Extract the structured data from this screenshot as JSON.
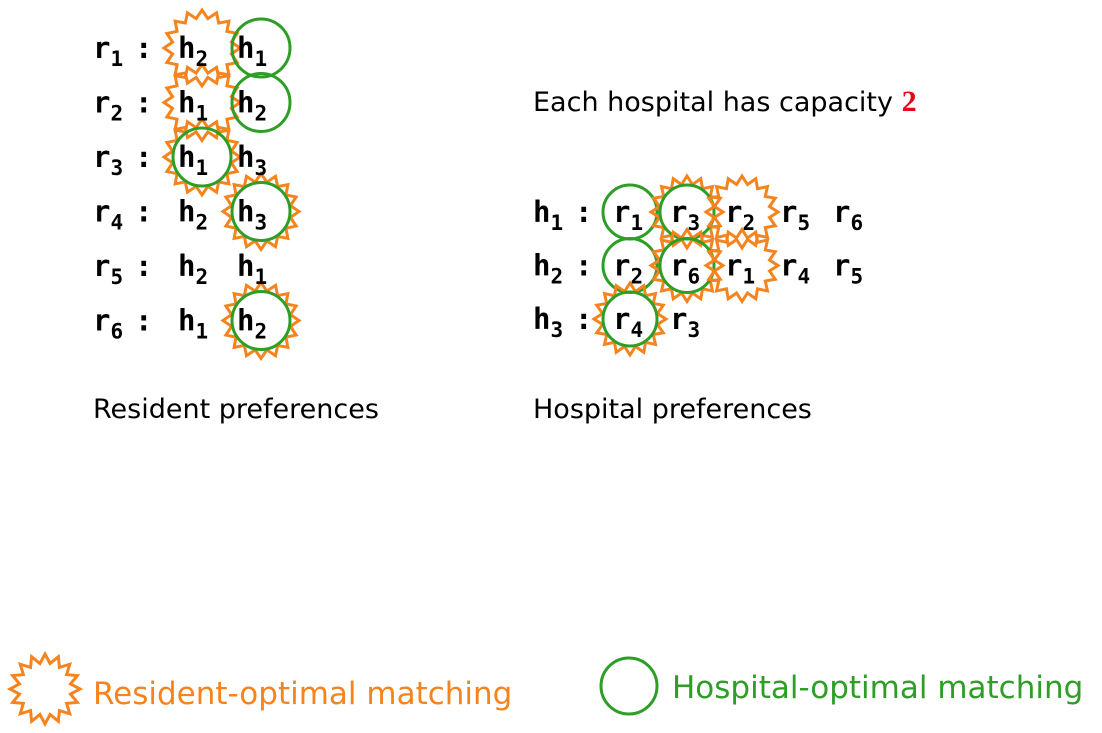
{
  "resident_rows": [
    {
      "name": "r",
      "sub": "1",
      "prefs": [
        {
          "t": "h",
          "s": "2",
          "star": true,
          "circle": false
        },
        {
          "t": "h",
          "s": "1",
          "star": false,
          "circle": true
        }
      ]
    },
    {
      "name": "r",
      "sub": "2",
      "prefs": [
        {
          "t": "h",
          "s": "1",
          "star": true,
          "circle": false
        },
        {
          "t": "h",
          "s": "2",
          "star": false,
          "circle": true
        }
      ]
    },
    {
      "name": "r",
      "sub": "3",
      "prefs": [
        {
          "t": "h",
          "s": "1",
          "star": true,
          "circle": true
        },
        {
          "t": "h",
          "s": "3",
          "star": false,
          "circle": false
        }
      ]
    },
    {
      "name": "r",
      "sub": "4",
      "prefs": [
        {
          "t": "h",
          "s": "2",
          "star": false,
          "circle": false
        },
        {
          "t": "h",
          "s": "3",
          "star": true,
          "circle": true
        }
      ]
    },
    {
      "name": "r",
      "sub": "5",
      "prefs": [
        {
          "t": "h",
          "s": "2",
          "star": false,
          "circle": false
        },
        {
          "t": "h",
          "s": "1",
          "star": false,
          "circle": false
        }
      ]
    },
    {
      "name": "r",
      "sub": "6",
      "prefs": [
        {
          "t": "h",
          "s": "1",
          "star": false,
          "circle": false
        },
        {
          "t": "h",
          "s": "2",
          "star": true,
          "circle": true
        }
      ]
    }
  ],
  "hospital_rows": [
    {
      "name": "h",
      "sub": "1",
      "prefs": [
        {
          "t": "r",
          "s": "1",
          "star": false,
          "circle": true
        },
        {
          "t": "r",
          "s": "3",
          "star": true,
          "circle": true
        },
        {
          "t": "r",
          "s": "2",
          "star": true,
          "circle": false
        },
        {
          "t": "r",
          "s": "5",
          "star": false,
          "circle": false
        },
        {
          "t": "r",
          "s": "6",
          "star": false,
          "circle": false
        }
      ]
    },
    {
      "name": "h",
      "sub": "2",
      "prefs": [
        {
          "t": "r",
          "s": "2",
          "star": false,
          "circle": true
        },
        {
          "t": "r",
          "s": "6",
          "star": true,
          "circle": true
        },
        {
          "t": "r",
          "s": "1",
          "star": true,
          "circle": false
        },
        {
          "t": "r",
          "s": "4",
          "star": false,
          "circle": false
        },
        {
          "t": "r",
          "s": "5",
          "star": false,
          "circle": false
        }
      ]
    },
    {
      "name": "h",
      "sub": "3",
      "prefs": [
        {
          "t": "r",
          "s": "4",
          "star": true,
          "circle": true
        },
        {
          "t": "r",
          "s": "3",
          "star": false,
          "circle": false
        }
      ]
    }
  ],
  "separator": ":",
  "capacity_text": "Each hospital has capacity ",
  "capacity_value": "2",
  "resident_caption": "Resident preferences",
  "hospital_caption": "Hospital preferences",
  "legend": {
    "resident_label": "Resident-optimal matching",
    "hospital_label": "Hospital-optimal matching"
  },
  "colors": {
    "star": "#f5841f",
    "circle": "#2e9e27",
    "capacity": "#e3051b",
    "text": "#000000"
  }
}
